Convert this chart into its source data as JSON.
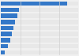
{
  "values": [
    11600,
    3200,
    2900,
    2500,
    2200,
    1900,
    1600,
    1300,
    650
  ],
  "bar_color": "#3478c8",
  "background_color": "#f0f0f0",
  "bar_bg_color": "#e8e8e8",
  "grid_color": "#d0d0d0",
  "xlim": [
    0,
    13500
  ],
  "figsize": [
    1.0,
    0.71
  ],
  "dpi": 100,
  "bar_height": 0.72
}
